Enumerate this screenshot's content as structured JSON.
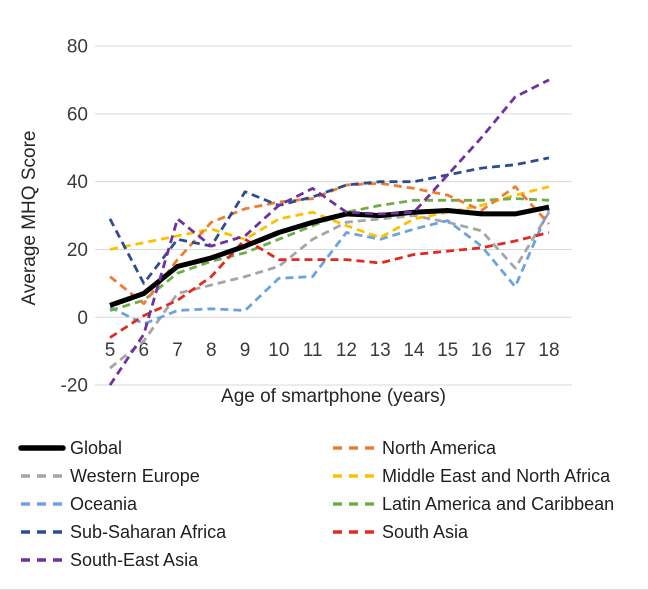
{
  "chart_data": {
    "type": "line",
    "title": "",
    "xlabel": "Age of smartphone (years)",
    "ylabel": "Average MHQ Score",
    "x": [
      5,
      6,
      7,
      8,
      9,
      10,
      11,
      12,
      13,
      14,
      15,
      16,
      17,
      18
    ],
    "ylim": [
      -20,
      80
    ],
    "yticks": [
      80,
      60,
      40,
      20,
      0,
      -20
    ],
    "grid": true,
    "grid_color": "#d9d9d9",
    "legend_position": "bottom",
    "series": [
      {
        "name": "Global",
        "color": "#000000",
        "dashed": false,
        "width": 5,
        "values": [
          3.5,
          7,
          15,
          17.5,
          21,
          25,
          28,
          30.5,
          30,
          31,
          31.5,
          30.5,
          30.5,
          32.5
        ]
      },
      {
        "name": "Western Europe",
        "color": "#a5a5a5",
        "dashed": true,
        "width": 2.8,
        "values": [
          -15,
          -7,
          7,
          9.5,
          12,
          15,
          23,
          28,
          29,
          30,
          28,
          25.5,
          14.5,
          31
        ]
      },
      {
        "name": "Oceania",
        "color": "#6ba3dc",
        "dashed": true,
        "width": 2.8,
        "values": [
          3,
          -2,
          2,
          2.5,
          2,
          11.5,
          12,
          25,
          23,
          26,
          28.5,
          21,
          9,
          32
        ]
      },
      {
        "name": "Sub-Saharan Africa",
        "color": "#2e4d8e",
        "dashed": true,
        "width": 2.8,
        "values": [
          29,
          10,
          23,
          21,
          37,
          33,
          35.5,
          39,
          40,
          40,
          42,
          44,
          45,
          47
        ]
      },
      {
        "name": "South-East Asia",
        "color": "#7030a0",
        "dashed": true,
        "width": 2.8,
        "values": [
          -20,
          -5,
          29,
          21,
          24,
          33,
          38,
          31,
          30.5,
          31,
          42,
          53,
          65,
          70
        ]
      },
      {
        "name": "North America",
        "color": "#ed7d31",
        "dashed": true,
        "width": 2.8,
        "values": [
          12,
          4,
          17,
          28,
          32,
          34,
          35,
          39,
          39.5,
          38,
          36,
          31.5,
          38.5,
          27.5
        ]
      },
      {
        "name": "Middle East and North Africa",
        "color": "#fcc000",
        "dashed": true,
        "width": 2.8,
        "values": [
          20,
          22,
          24,
          26,
          23,
          29,
          31,
          27,
          23.5,
          29,
          31,
          33,
          36,
          38.5
        ]
      },
      {
        "name": "Latin America and Caribbean",
        "color": "#70ad47",
        "dashed": true,
        "width": 2.8,
        "values": [
          2,
          5,
          13,
          16.5,
          19,
          23,
          27,
          31,
          33,
          34.5,
          34.5,
          34.5,
          35,
          34.5
        ]
      },
      {
        "name": "South Asia",
        "color": "#e02b20",
        "dashed": true,
        "width": 2.8,
        "values": [
          -6,
          0.5,
          5,
          12,
          23,
          17,
          17,
          17,
          16,
          18.5,
          19.5,
          20.5,
          22.5,
          25
        ]
      }
    ],
    "draw_order": [
      "Western Europe",
      "Oceania",
      "Middle East and North Africa",
      "Latin America and Caribbean",
      "South Asia",
      "North America",
      "Sub-Saharan Africa",
      "Global",
      "South-East Asia"
    ]
  }
}
